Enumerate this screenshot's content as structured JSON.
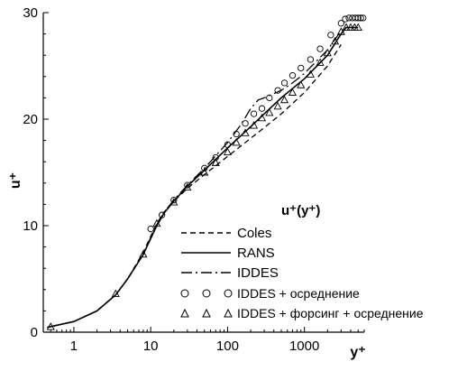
{
  "chart_data": {
    "type": "line",
    "title": "",
    "xlabel": "y⁺",
    "ylabel": "u⁺",
    "annotation": "u⁺(y⁺)",
    "x_scale": "log",
    "xlim": [
      0.4,
      6000
    ],
    "ylim": [
      0,
      30
    ],
    "x_ticks": [
      {
        "value": 1,
        "label": "1"
      },
      {
        "value": 10,
        "label": "10"
      },
      {
        "value": 100,
        "label": "100"
      },
      {
        "value": 1000,
        "label": "1000"
      }
    ],
    "y_ticks": [
      {
        "value": 0,
        "label": "0"
      },
      {
        "value": 10,
        "label": "10"
      },
      {
        "value": 20,
        "label": "20"
      },
      {
        "value": 30,
        "label": "30"
      }
    ],
    "grid": false,
    "legend_position": "bottom-right",
    "series": [
      {
        "name": "Coles",
        "style": "dashed",
        "x": [
          0.45,
          1,
          2,
          3.5,
          5,
          8,
          10,
          12,
          15,
          20,
          30,
          50,
          100,
          200,
          300,
          500,
          1000,
          2000,
          3000
        ],
        "y": [
          0.45,
          1.0,
          2.0,
          3.5,
          5.0,
          7.5,
          9.0,
          10.2,
          11.3,
          12.3,
          13.5,
          14.8,
          16.5,
          18.2,
          19.2,
          20.5,
          22.5,
          25.0,
          27.0
        ]
      },
      {
        "name": "RANS",
        "style": "solid",
        "x": [
          0.45,
          1,
          2,
          3.5,
          5,
          8,
          10,
          12,
          15,
          20,
          30,
          50,
          100,
          200,
          300,
          500,
          1000,
          2000,
          3000,
          3500,
          5000
        ],
        "y": [
          0.45,
          1.0,
          2.0,
          3.5,
          5.0,
          7.3,
          8.8,
          10.0,
          11.2,
          12.3,
          13.7,
          15.2,
          17.3,
          19.3,
          20.5,
          22.0,
          23.8,
          26.0,
          28.0,
          28.6,
          28.6
        ]
      },
      {
        "name": "IDDES",
        "style": "dash-dot",
        "x": [
          0.45,
          1,
          2,
          3.5,
          5,
          8,
          10,
          12,
          15,
          20,
          30,
          50,
          100,
          150,
          200,
          250,
          300,
          400,
          500,
          700,
          1000,
          2000,
          3000
        ],
        "y": [
          0.45,
          1.0,
          2.0,
          3.5,
          5.0,
          7.3,
          8.9,
          10.1,
          11.3,
          12.4,
          13.8,
          15.4,
          17.8,
          19.5,
          21.0,
          21.8,
          22.0,
          22.4,
          22.7,
          23.4,
          24.3,
          26.5,
          28.3
        ]
      },
      {
        "name": "IDDES + осреднение",
        "style": "circle",
        "x": [
          10,
          14,
          20,
          30,
          50,
          70,
          100,
          130,
          170,
          220,
          280,
          350,
          450,
          550,
          700,
          900,
          1200,
          1600,
          2200,
          3000,
          3400,
          3800,
          4200,
          4600,
          5000,
          5400,
          5800
        ],
        "y": [
          9.7,
          11.0,
          12.4,
          13.8,
          15.4,
          16.4,
          17.6,
          18.6,
          19.6,
          20.5,
          21.0,
          22.0,
          22.7,
          23.4,
          24.1,
          24.8,
          25.6,
          26.6,
          27.9,
          29.0,
          29.4,
          29.5,
          29.5,
          29.5,
          29.5,
          29.5,
          29.5
        ]
      },
      {
        "name": "IDDES + форсинг + осреднение",
        "style": "triangle",
        "x": [
          0.5,
          3.5,
          8,
          12,
          20,
          30,
          50,
          70,
          100,
          130,
          170,
          220,
          280,
          350,
          450,
          550,
          700,
          900,
          1200,
          1600,
          2000,
          2500,
          3000,
          3500,
          4000,
          4500,
          5000
        ],
        "y": [
          0.5,
          3.6,
          7.3,
          10.2,
          12.2,
          13.6,
          15.0,
          15.9,
          16.9,
          17.8,
          18.7,
          19.4,
          20.1,
          20.6,
          21.2,
          21.8,
          22.5,
          23.2,
          24.2,
          25.3,
          26.2,
          27.3,
          28.2,
          28.6,
          28.6,
          28.6,
          28.6
        ]
      }
    ]
  }
}
